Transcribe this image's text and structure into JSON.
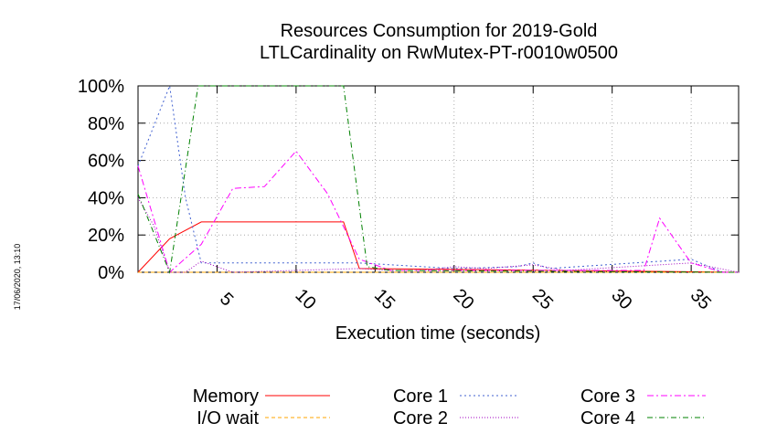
{
  "chart_data": {
    "type": "line",
    "title_lines": [
      "Resources Consumption for 2019-Gold",
      "LTLCardinality on RwMutex-PT-r0010w0500"
    ],
    "xlabel": "Execution time (seconds)",
    "ylabel": "",
    "xlim": [
      0,
      38
    ],
    "ylim": [
      0,
      100
    ],
    "x_ticks": [
      {
        "value": 5,
        "label": "5"
      },
      {
        "value": 10,
        "label": "10"
      },
      {
        "value": 15,
        "label": "15"
      },
      {
        "value": 20,
        "label": "20"
      },
      {
        "value": 25,
        "label": "25"
      },
      {
        "value": 30,
        "label": "30"
      },
      {
        "value": 35,
        "label": "35"
      }
    ],
    "y_ticks": [
      {
        "value": 0,
        "label": "0%"
      },
      {
        "value": 20,
        "label": "20%"
      },
      {
        "value": 40,
        "label": "40%"
      },
      {
        "value": 60,
        "label": "60%"
      },
      {
        "value": 80,
        "label": "80%"
      },
      {
        "value": 100,
        "label": "100%"
      }
    ],
    "grid": true,
    "legend_position": "bottom",
    "series": [
      {
        "name": "Memory",
        "color": "#ff0000",
        "dash": "",
        "points": [
          [
            0,
            0
          ],
          [
            2,
            18
          ],
          [
            4,
            27
          ],
          [
            13,
            27
          ],
          [
            14,
            2
          ],
          [
            38,
            0
          ]
        ]
      },
      {
        "name": "I/O wait",
        "color": "#ffa500",
        "dash": "4,3",
        "points": [
          [
            0,
            0
          ],
          [
            38,
            0
          ]
        ]
      },
      {
        "name": "Core 1",
        "color": "#4060d0",
        "dash": "2,3",
        "points": [
          [
            0,
            57
          ],
          [
            2,
            100
          ],
          [
            3,
            40
          ],
          [
            4,
            5
          ],
          [
            14,
            5
          ],
          [
            20,
            2
          ],
          [
            24,
            3
          ],
          [
            25,
            5
          ],
          [
            26,
            2
          ],
          [
            35,
            7
          ],
          [
            37,
            0
          ],
          [
            38,
            0
          ]
        ]
      },
      {
        "name": "Core 2",
        "color": "#a000c0",
        "dash": "1,2",
        "points": [
          [
            0,
            40
          ],
          [
            1,
            25
          ],
          [
            2,
            0
          ],
          [
            3,
            0
          ],
          [
            4,
            6
          ],
          [
            6,
            0
          ],
          [
            14,
            2
          ],
          [
            16,
            1
          ],
          [
            18,
            1
          ],
          [
            20,
            3
          ],
          [
            22,
            2
          ],
          [
            25,
            4
          ],
          [
            27,
            1
          ],
          [
            35,
            5
          ],
          [
            38,
            0
          ]
        ]
      },
      {
        "name": "Core 3",
        "color": "#ff00ff",
        "dash": "7,3,2,3",
        "points": [
          [
            0,
            57
          ],
          [
            2,
            0
          ],
          [
            4,
            15
          ],
          [
            6,
            45
          ],
          [
            8,
            46
          ],
          [
            10,
            65
          ],
          [
            12,
            42
          ],
          [
            14,
            7
          ],
          [
            16,
            1
          ],
          [
            20,
            1
          ],
          [
            30,
            1
          ],
          [
            32,
            1
          ],
          [
            33,
            29
          ],
          [
            35,
            5
          ],
          [
            37,
            0
          ],
          [
            38,
            0
          ]
        ]
      },
      {
        "name": "Core 4",
        "color": "#008000",
        "dash": "6,3,1,3",
        "points": [
          [
            0,
            42
          ],
          [
            2,
            0
          ],
          [
            3.8,
            100
          ],
          [
            13,
            100
          ],
          [
            14.5,
            3
          ],
          [
            16,
            1
          ],
          [
            38,
            0
          ]
        ]
      }
    ]
  },
  "timestamp": "17/06/2020, 13:10"
}
